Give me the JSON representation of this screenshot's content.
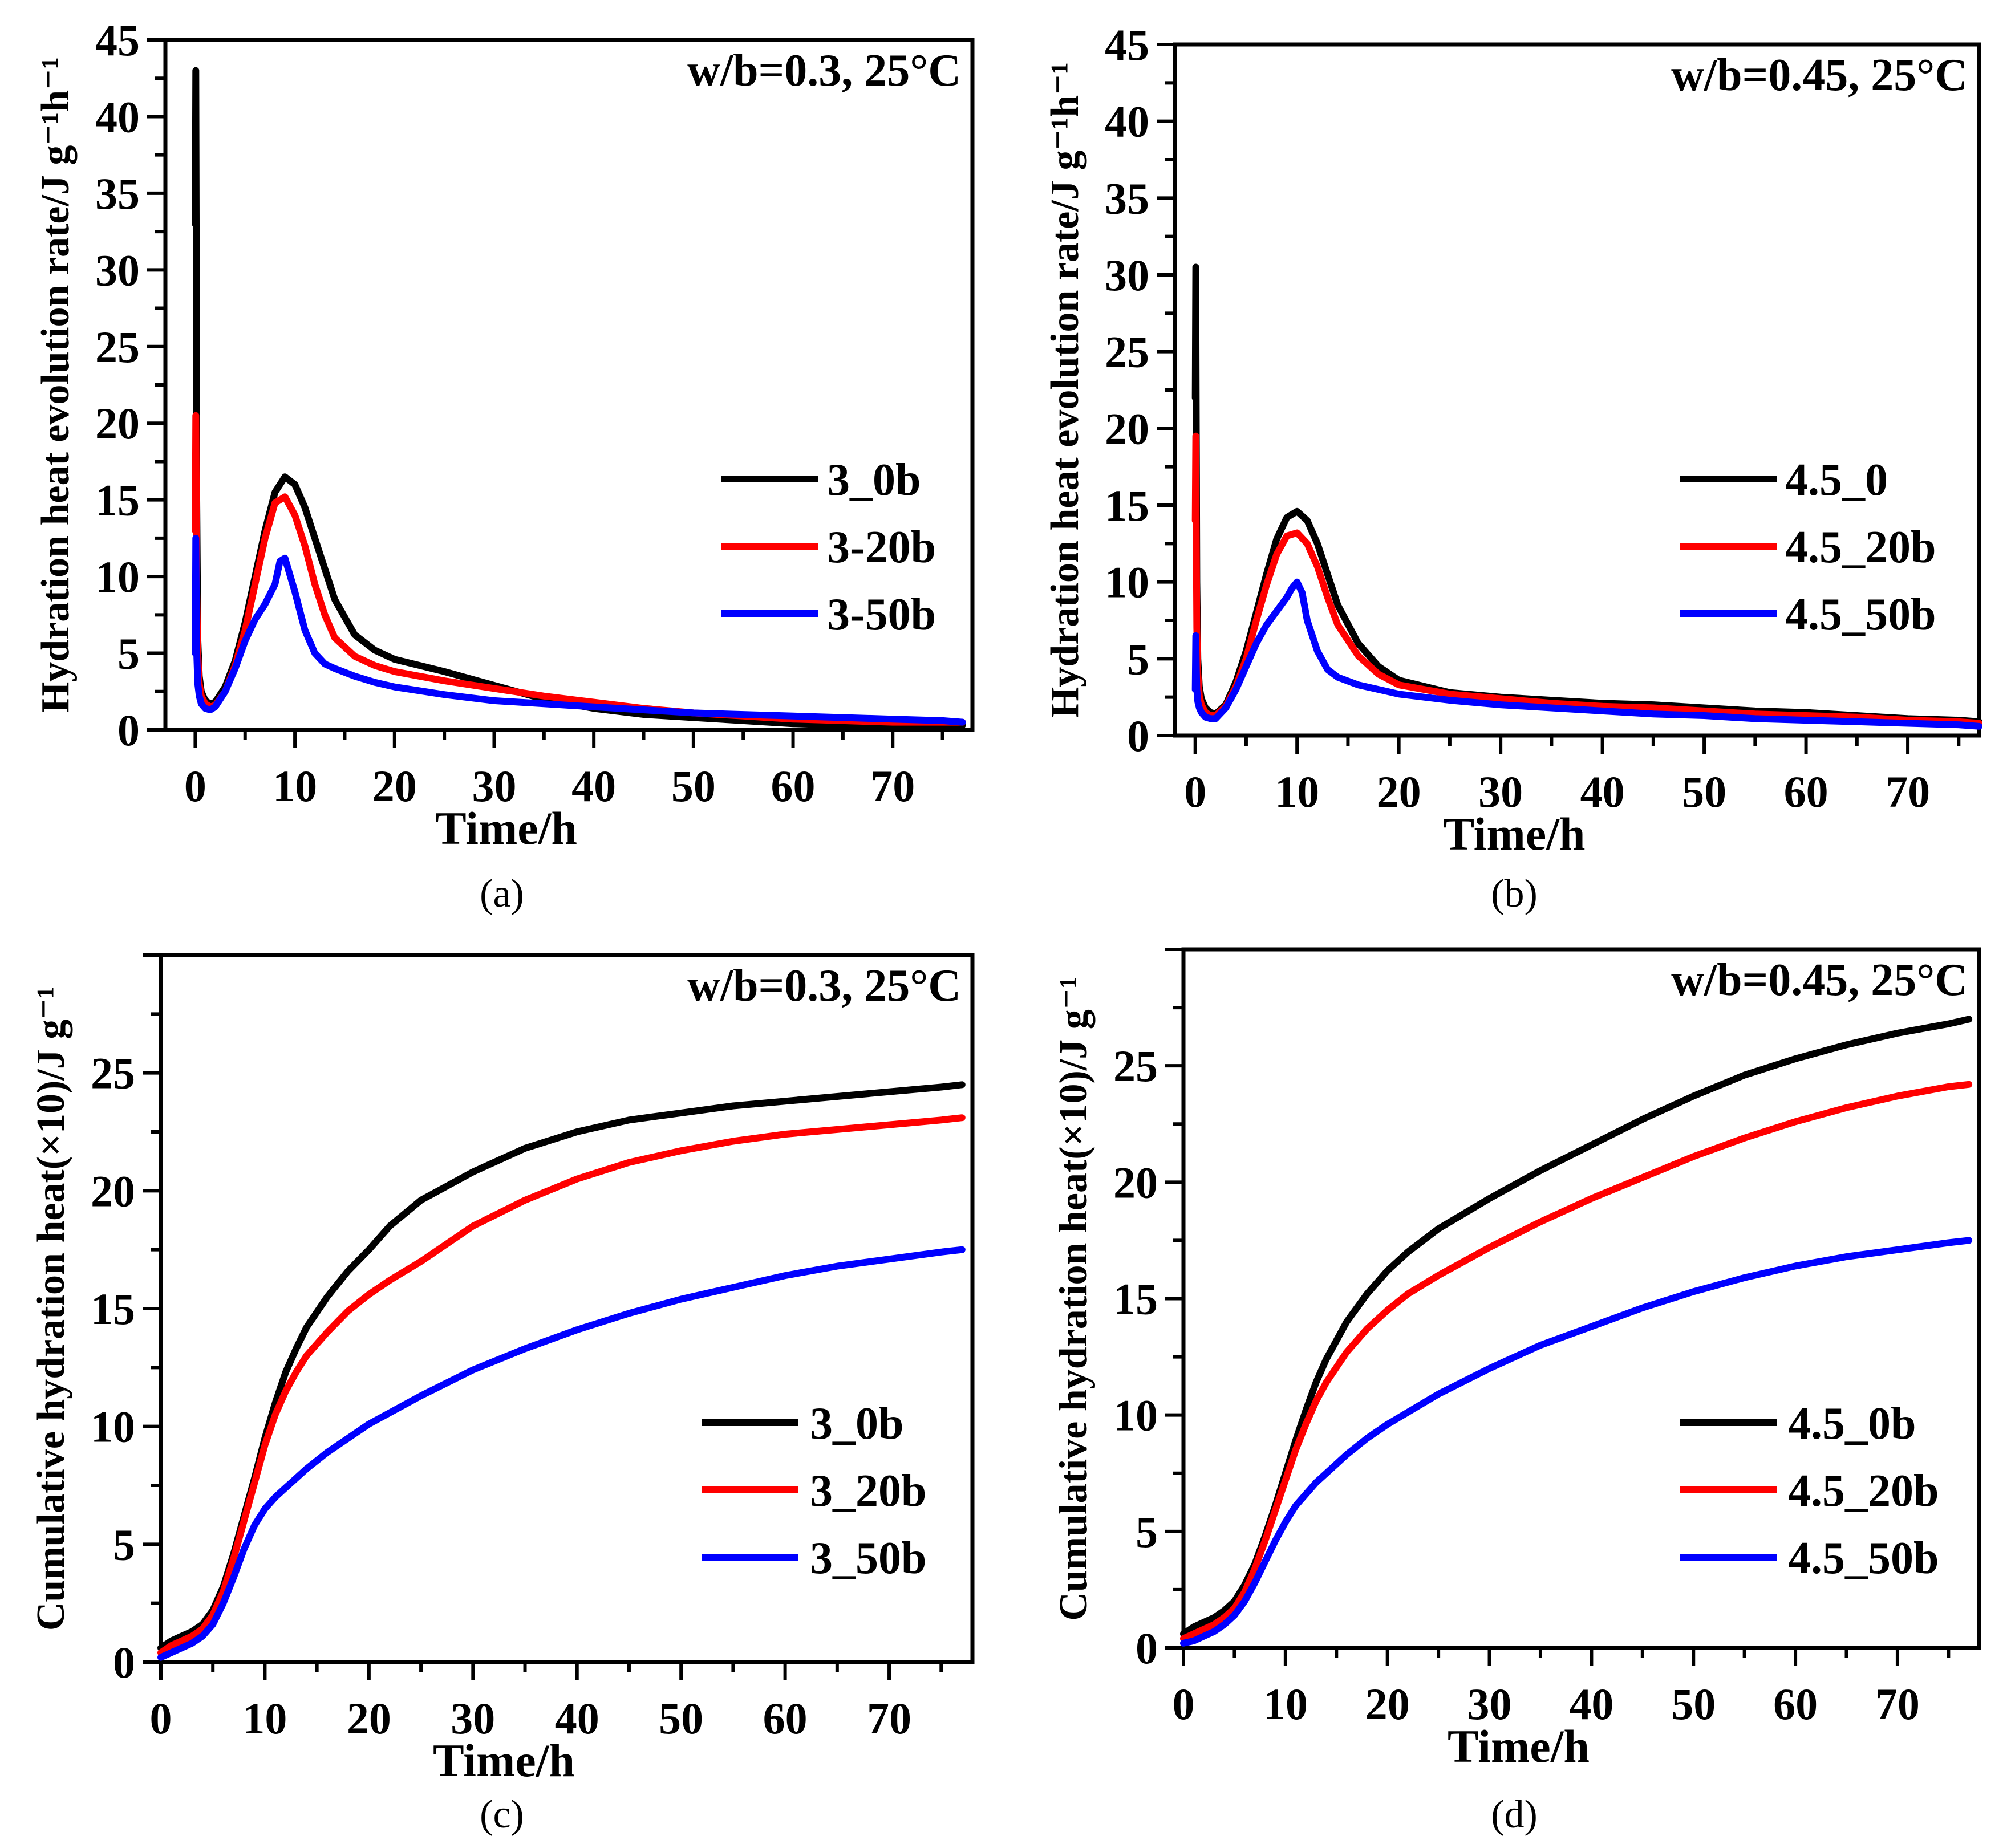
{
  "chart_data": [
    {
      "id": "a",
      "type": "line",
      "caption": "(a)",
      "annotation": "w/b=0.3, 25°C",
      "xlabel": "Time/h",
      "ylabel": "Hydration heat evolution rate/J g⁻¹h⁻¹",
      "xlim": [
        -3,
        78
      ],
      "ylim": [
        0,
        45
      ],
      "xticks": [
        0,
        10,
        20,
        30,
        40,
        50,
        60,
        70
      ],
      "yticks": [
        0,
        5,
        10,
        15,
        20,
        25,
        30,
        35,
        40,
        45
      ],
      "legend_position": "right-middle",
      "series": [
        {
          "name": "3_0b",
          "color": "#000000",
          "x": [
            0,
            0.05,
            0.1,
            0.15,
            0.25,
            0.4,
            0.6,
            1,
            1.5,
            2,
            3,
            4,
            5,
            6,
            7,
            8,
            9,
            10,
            11,
            12,
            13,
            14,
            16,
            18,
            20,
            25,
            30,
            35,
            40,
            45,
            50,
            55,
            60,
            65,
            70,
            75,
            77
          ],
          "values": [
            33,
            43,
            30,
            15,
            6,
            3.5,
            2.5,
            1.9,
            1.7,
            1.8,
            2.8,
            4.5,
            7,
            10,
            13,
            15.5,
            16.5,
            16,
            14.5,
            12.5,
            10.5,
            8.5,
            6.2,
            5.2,
            4.6,
            3.8,
            2.9,
            2,
            1.4,
            1,
            0.8,
            0.6,
            0.4,
            0.3,
            0.3,
            0.3,
            0.3
          ]
        },
        {
          "name": "3-20b",
          "color": "#ff0000",
          "x": [
            0,
            0.05,
            0.1,
            0.15,
            0.25,
            0.4,
            0.6,
            1,
            1.5,
            2,
            3,
            4,
            5,
            6,
            7,
            8,
            9,
            10,
            11,
            12,
            13,
            14,
            16,
            18,
            20,
            25,
            30,
            35,
            40,
            45,
            50,
            55,
            60,
            65,
            70,
            75,
            77
          ],
          "values": [
            13,
            20.5,
            15,
            9,
            5,
            3,
            2.2,
            1.7,
            1.5,
            1.6,
            2.5,
            4.2,
            6.5,
            9.5,
            12.5,
            14.8,
            15.2,
            14,
            12,
            9.5,
            7.5,
            6,
            4.8,
            4.2,
            3.8,
            3.2,
            2.7,
            2.2,
            1.8,
            1.4,
            1.1,
            0.9,
            0.7,
            0.6,
            0.5,
            0.5,
            0.5
          ]
        },
        {
          "name": "3-50b",
          "color": "#0000ff",
          "x": [
            0,
            0.05,
            0.1,
            0.15,
            0.25,
            0.4,
            0.6,
            1,
            1.5,
            2,
            3,
            4,
            5,
            6,
            7,
            8,
            8.5,
            9,
            10,
            11,
            12,
            13,
            14,
            16,
            18,
            20,
            25,
            30,
            35,
            40,
            45,
            50,
            55,
            60,
            65,
            70,
            75,
            77
          ],
          "values": [
            5,
            12.5,
            8,
            5,
            3,
            2.2,
            1.7,
            1.4,
            1.3,
            1.5,
            2.5,
            4,
            5.8,
            7.2,
            8.2,
            9.5,
            11,
            11.2,
            9,
            6.5,
            5,
            4.3,
            4,
            3.5,
            3.1,
            2.8,
            2.3,
            1.9,
            1.7,
            1.5,
            1.3,
            1.1,
            1,
            0.9,
            0.8,
            0.7,
            0.6,
            0.5
          ]
        }
      ]
    },
    {
      "id": "b",
      "type": "line",
      "caption": "(b)",
      "annotation": "w/b=0.45, 25°C",
      "xlabel": "Time/h",
      "ylabel": "Hydration heat evolution rate/J g⁻¹h⁻¹",
      "xlim": [
        -2,
        77
      ],
      "ylim": [
        0,
        45
      ],
      "xticks": [
        0,
        10,
        20,
        30,
        40,
        50,
        60,
        70
      ],
      "yticks": [
        0,
        5,
        10,
        15,
        20,
        25,
        30,
        35,
        40,
        45
      ],
      "legend_position": "right-middle",
      "series": [
        {
          "name": "4.5_0",
          "color": "#000000",
          "x": [
            0,
            0.05,
            0.1,
            0.15,
            0.25,
            0.4,
            0.6,
            1,
            1.5,
            2,
            3,
            4,
            5,
            6,
            7,
            8,
            9,
            10,
            11,
            12,
            13,
            14,
            16,
            18,
            20,
            25,
            30,
            35,
            40,
            45,
            50,
            55,
            60,
            65,
            70,
            75,
            77
          ],
          "values": [
            22,
            30.5,
            20,
            10,
            5,
            3.2,
            2.4,
            1.8,
            1.5,
            1.4,
            2,
            3.5,
            5.5,
            8,
            10.5,
            12.8,
            14.2,
            14.6,
            14,
            12.5,
            10.5,
            8.5,
            6,
            4.5,
            3.6,
            2.8,
            2.5,
            2.3,
            2.1,
            2,
            1.8,
            1.6,
            1.5,
            1.3,
            1.1,
            1,
            0.9
          ]
        },
        {
          "name": "4.5_20b",
          "color": "#ff0000",
          "x": [
            0,
            0.05,
            0.1,
            0.15,
            0.25,
            0.4,
            0.6,
            1,
            1.5,
            2,
            3,
            4,
            5,
            6,
            7,
            8,
            9,
            10,
            11,
            12,
            13,
            14,
            16,
            18,
            20,
            25,
            30,
            35,
            40,
            45,
            50,
            55,
            60,
            65,
            70,
            75,
            77
          ],
          "values": [
            14,
            19.5,
            13,
            7,
            4,
            2.6,
            2,
            1.5,
            1.3,
            1.3,
            1.9,
            3.2,
            5,
            7.5,
            9.8,
            11.8,
            13,
            13.2,
            12.5,
            11,
            9,
            7.2,
            5.2,
            4,
            3.3,
            2.7,
            2.4,
            2.1,
            1.9,
            1.8,
            1.6,
            1.4,
            1.3,
            1.2,
            1,
            0.9,
            0.8
          ]
        },
        {
          "name": "4.5_50b",
          "color": "#0000ff",
          "x": [
            0,
            0.05,
            0.1,
            0.15,
            0.25,
            0.4,
            0.6,
            1,
            1.5,
            2,
            3,
            4,
            5,
            6,
            7,
            8,
            9,
            9.5,
            10,
            10.5,
            11,
            12,
            13,
            14,
            16,
            18,
            20,
            25,
            30,
            35,
            40,
            45,
            50,
            55,
            60,
            65,
            70,
            75,
            77
          ],
          "values": [
            3,
            6.5,
            4.5,
            3,
            2.2,
            1.8,
            1.5,
            1.2,
            1.1,
            1.1,
            1.8,
            3,
            4.5,
            6,
            7.2,
            8.1,
            9,
            9.6,
            10,
            9.3,
            7.5,
            5.5,
            4.3,
            3.8,
            3.3,
            3,
            2.7,
            2.3,
            2,
            1.8,
            1.6,
            1.4,
            1.3,
            1.1,
            1,
            0.9,
            0.8,
            0.7,
            0.6
          ]
        }
      ]
    },
    {
      "id": "c",
      "type": "line",
      "caption": "(c)",
      "annotation": "w/b=0.3, 25°C",
      "xlabel": "Time/h",
      "ylabel": "Cumulative hydration heat(×10)/J g⁻¹",
      "xlim": [
        0,
        78
      ],
      "ylim": [
        0,
        30
      ],
      "xticks": [
        0,
        10,
        20,
        30,
        40,
        50,
        60,
        70
      ],
      "yticks": [
        0,
        5,
        10,
        15,
        20,
        25
      ],
      "legend_position": "right-lower",
      "series": [
        {
          "name": "3_0b",
          "color": "#000000",
          "x": [
            0,
            1,
            2,
            3,
            4,
            5,
            6,
            7,
            8,
            9,
            10,
            11,
            12,
            13,
            14,
            16,
            18,
            20,
            22,
            25,
            30,
            35,
            40,
            45,
            50,
            55,
            60,
            65,
            70,
            75,
            77
          ],
          "values": [
            0.6,
            0.9,
            1.1,
            1.3,
            1.6,
            2.2,
            3.2,
            4.6,
            6.2,
            7.8,
            9.5,
            11,
            12.3,
            13.3,
            14.2,
            15.5,
            16.6,
            17.5,
            18.5,
            19.6,
            20.8,
            21.8,
            22.5,
            23,
            23.3,
            23.6,
            23.8,
            24,
            24.2,
            24.4,
            24.5
          ]
        },
        {
          "name": "3_20b",
          "color": "#ff0000",
          "x": [
            0,
            1,
            2,
            3,
            4,
            5,
            6,
            7,
            8,
            9,
            10,
            11,
            12,
            13,
            14,
            16,
            18,
            20,
            22,
            25,
            30,
            35,
            40,
            45,
            50,
            55,
            60,
            65,
            70,
            75,
            77
          ],
          "values": [
            0.4,
            0.7,
            0.9,
            1.1,
            1.4,
            2,
            3,
            4.4,
            6,
            7.6,
            9.2,
            10.5,
            11.5,
            12.3,
            13,
            14,
            14.9,
            15.6,
            16.2,
            17,
            18.5,
            19.6,
            20.5,
            21.2,
            21.7,
            22.1,
            22.4,
            22.6,
            22.8,
            23,
            23.1
          ]
        },
        {
          "name": "3_50b",
          "color": "#0000ff",
          "x": [
            0,
            1,
            2,
            3,
            4,
            5,
            6,
            7,
            8,
            9,
            10,
            11,
            12,
            14,
            16,
            18,
            20,
            25,
            30,
            35,
            40,
            45,
            50,
            55,
            60,
            65,
            70,
            75,
            77
          ],
          "values": [
            0.2,
            0.4,
            0.6,
            0.8,
            1.1,
            1.6,
            2.5,
            3.6,
            4.8,
            5.8,
            6.5,
            7,
            7.4,
            8.2,
            8.9,
            9.5,
            10.1,
            11.3,
            12.4,
            13.3,
            14.1,
            14.8,
            15.4,
            15.9,
            16.4,
            16.8,
            17.1,
            17.4,
            17.5
          ]
        }
      ]
    },
    {
      "id": "d",
      "type": "line",
      "caption": "(d)",
      "annotation": "w/b=0.45, 25°C",
      "xlabel": "Time/h",
      "ylabel": "Cumulative hydration heat(×10)/J g⁻¹",
      "xlim": [
        0,
        78
      ],
      "ylim": [
        0,
        30
      ],
      "xticks": [
        0,
        10,
        20,
        30,
        40,
        50,
        60,
        70
      ],
      "yticks": [
        0,
        5,
        10,
        15,
        20,
        25
      ],
      "legend_position": "right-lower",
      "series": [
        {
          "name": "4.5_0b",
          "color": "#000000",
          "x": [
            0,
            1,
            2,
            3,
            4,
            5,
            6,
            7,
            8,
            9,
            10,
            11,
            12,
            13,
            14,
            16,
            18,
            20,
            22,
            25,
            30,
            35,
            40,
            45,
            50,
            55,
            60,
            65,
            70,
            75,
            77
          ],
          "values": [
            0.6,
            0.9,
            1.1,
            1.3,
            1.6,
            2,
            2.7,
            3.6,
            4.8,
            6.1,
            7.5,
            8.9,
            10.2,
            11.4,
            12.4,
            14,
            15.2,
            16.2,
            17,
            18,
            19.3,
            20.5,
            21.6,
            22.7,
            23.7,
            24.6,
            25.3,
            25.9,
            26.4,
            26.8,
            27
          ]
        },
        {
          "name": "4.5_20b",
          "color": "#ff0000",
          "x": [
            0,
            1,
            2,
            3,
            4,
            5,
            6,
            7,
            8,
            9,
            10,
            11,
            12,
            13,
            14,
            16,
            18,
            20,
            22,
            25,
            30,
            35,
            40,
            45,
            50,
            55,
            60,
            65,
            70,
            75,
            77
          ],
          "values": [
            0.4,
            0.6,
            0.8,
            1,
            1.3,
            1.7,
            2.4,
            3.4,
            4.6,
            5.9,
            7.2,
            8.5,
            9.6,
            10.6,
            11.4,
            12.7,
            13.7,
            14.5,
            15.2,
            16,
            17.2,
            18.3,
            19.3,
            20.2,
            21.1,
            21.9,
            22.6,
            23.2,
            23.7,
            24.1,
            24.2
          ]
        },
        {
          "name": "4.5_50b",
          "color": "#0000ff",
          "x": [
            0,
            1,
            2,
            3,
            4,
            5,
            6,
            7,
            8,
            9,
            10,
            11,
            12,
            13,
            14,
            16,
            18,
            20,
            25,
            30,
            35,
            40,
            45,
            50,
            55,
            60,
            65,
            70,
            75,
            77
          ],
          "values": [
            0.2,
            0.3,
            0.5,
            0.7,
            1,
            1.4,
            2,
            2.8,
            3.7,
            4.6,
            5.4,
            6.1,
            6.6,
            7.1,
            7.5,
            8.3,
            9,
            9.6,
            10.9,
            12,
            13,
            13.8,
            14.6,
            15.3,
            15.9,
            16.4,
            16.8,
            17.1,
            17.4,
            17.5
          ]
        }
      ]
    }
  ]
}
